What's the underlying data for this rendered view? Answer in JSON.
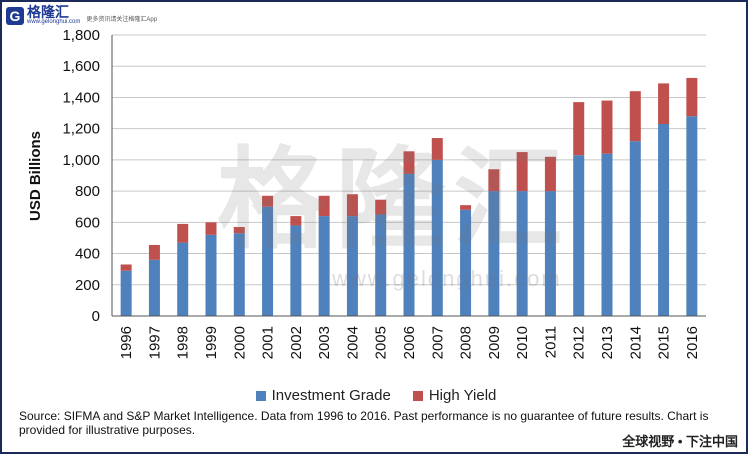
{
  "brand": {
    "logo_letter": "G",
    "name": "格隆汇",
    "domain": "www.gelonghui.com",
    "slogan": "更多资讯请关注格隆汇App",
    "watermark": "格隆汇",
    "watermark_url": "www.gelonghui.com",
    "footer": "全球视野 • 下注中国"
  },
  "source_note": "Source: SIFMA and S&P Market Intelligence.  Data from 1996 to 2016.  Past performance is no guarantee of future results.  Chart is provided for illustrative purposes.",
  "colors": {
    "investment_grade": "#4f81bd",
    "high_yield": "#c0504d",
    "grid": "#c8c8c8",
    "axis": "#555555"
  },
  "chart_data": {
    "type": "bar",
    "stacked": true,
    "title": "",
    "xlabel": "",
    "ylabel": "USD Billions",
    "ylim": [
      0,
      1800
    ],
    "yticks": [
      0,
      200,
      400,
      600,
      800,
      1000,
      1200,
      1400,
      1600,
      1800
    ],
    "ytick_labels": [
      "0",
      "200",
      "400",
      "600",
      "800",
      "1,000",
      "1,200",
      "1,400",
      "1,600",
      "1,800"
    ],
    "grid": true,
    "legend_position": "bottom",
    "categories": [
      "1996",
      "1997",
      "1998",
      "1999",
      "2000",
      "2001",
      "2002",
      "2003",
      "2004",
      "2005",
      "2006",
      "2007",
      "2008",
      "2009",
      "2010",
      "2011",
      "2012",
      "2013",
      "2014",
      "2015",
      "2016"
    ],
    "series": [
      {
        "name": "Investment Grade",
        "values": [
          290,
          360,
          470,
          520,
          530,
          700,
          580,
          640,
          640,
          650,
          910,
          1000,
          680,
          800,
          800,
          800,
          1030,
          1040,
          1120,
          1230,
          1280
        ]
      },
      {
        "name": "High Yield",
        "values": [
          40,
          95,
          120,
          80,
          40,
          70,
          60,
          130,
          140,
          95,
          145,
          140,
          30,
          140,
          250,
          220,
          340,
          340,
          320,
          260,
          245
        ]
      }
    ]
  }
}
